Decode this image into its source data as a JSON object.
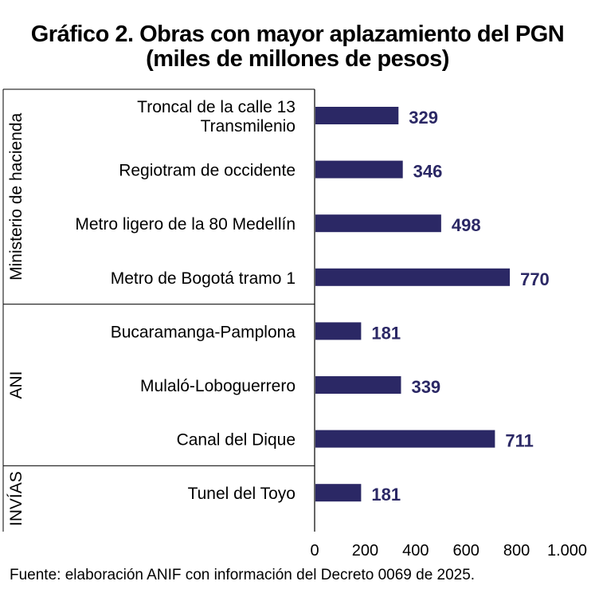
{
  "title": {
    "line1": "Gráfico 2. Obras con mayor aplazamiento del PGN",
    "line2": "(miles de millones de pesos)"
  },
  "source": "Fuente: elaboración ANIF con información del Decreto 0069 de 2025.",
  "colors": {
    "bar": "#2b2865",
    "label": "#2b2865",
    "axis": "#000000"
  },
  "chart_data": {
    "type": "bar",
    "orientation": "horizontal",
    "title": "Gráfico 2. Obras con mayor aplazamiento del PGN (miles de millones de pesos)",
    "xlim": [
      0,
      1000
    ],
    "xticks": [
      0,
      200,
      400,
      600,
      800,
      1000
    ],
    "xtick_labels": [
      "0",
      "200",
      "400",
      "600",
      "800",
      "1.000"
    ],
    "groups": [
      {
        "name": "Ministerio de hacienda",
        "items": [
          {
            "label": [
              "Troncal de la calle 13",
              "Transmilenio"
            ],
            "value": 329
          },
          {
            "label": [
              "Regiotram de occidente"
            ],
            "value": 346
          },
          {
            "label": [
              "Metro ligero de la 80 Medellín"
            ],
            "value": 498
          },
          {
            "label": [
              "Metro de Bogotá tramo 1"
            ],
            "value": 770
          }
        ]
      },
      {
        "name": "ANI",
        "items": [
          {
            "label": [
              "Bucaramanga-Pamplona"
            ],
            "value": 181
          },
          {
            "label": [
              "Mulaló-Loboguerrero"
            ],
            "value": 339
          },
          {
            "label": [
              "Canal del Dique"
            ],
            "value": 711
          }
        ]
      },
      {
        "name": "INVÍAS",
        "items": [
          {
            "label": [
              "Tunel del Toyo"
            ],
            "value": 181
          }
        ]
      }
    ],
    "grid": false,
    "legend": "none"
  }
}
